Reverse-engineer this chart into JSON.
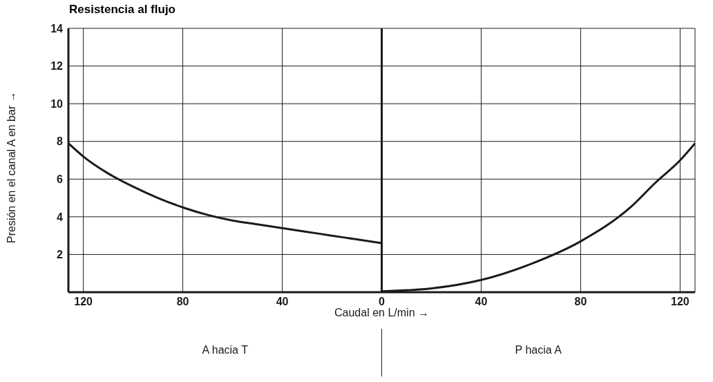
{
  "chart_data": {
    "type": "line",
    "title": "Resistencia al flujo",
    "xlabel": "Caudal en L/min →",
    "ylabel": "Presión en el canal A en bar →",
    "annotations": [
      "A hacia T",
      "P hacia A"
    ],
    "xlim": [
      -126,
      126
    ],
    "xticks": [
      {
        "value": -120,
        "label": "120"
      },
      {
        "value": -80,
        "label": "80"
      },
      {
        "value": -40,
        "label": "40"
      },
      0,
      40,
      80,
      120
    ],
    "ylim": [
      0,
      14
    ],
    "yticks": [
      2,
      4,
      6,
      8,
      10,
      12,
      14
    ],
    "grid": true,
    "marker": "none",
    "line_style": "solid",
    "ref_lines": [
      {
        "axis": "x",
        "value": 0,
        "color": "#1a1a1a"
      }
    ],
    "series": [
      {
        "color": "#1a1a1a",
        "x": [
          -126,
          -120,
          -110,
          -100,
          -90,
          -80,
          -70,
          -60,
          -50,
          -40,
          -30,
          -20,
          -10,
          0
        ],
        "values": [
          7.9,
          7.2,
          6.3,
          5.6,
          5.0,
          4.5,
          4.1,
          3.8,
          3.6,
          3.4,
          3.2,
          3.0,
          2.8,
          2.6
        ]
      },
      {
        "color": "#1a1a1a",
        "x": [
          0,
          20,
          40,
          60,
          80,
          100,
          110,
          120,
          126
        ],
        "values": [
          0.05,
          0.2,
          0.65,
          1.5,
          2.7,
          4.5,
          5.8,
          7.0,
          7.9
        ]
      }
    ]
  }
}
